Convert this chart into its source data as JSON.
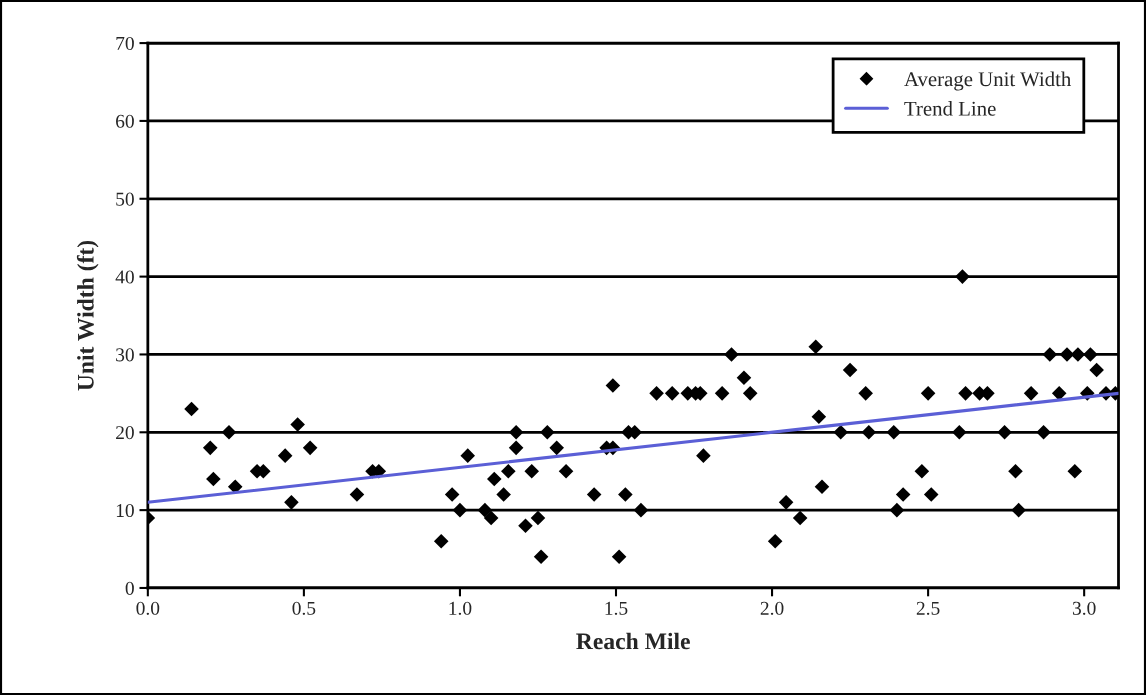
{
  "chart_data": {
    "type": "scatter",
    "xlabel": "Reach Mile",
    "ylabel": "Unit Width (ft)",
    "xlim": [
      0,
      3.11
    ],
    "xticks": [
      {
        "value": 0,
        "label": "0.0"
      },
      0.5,
      {
        "value": 1,
        "label": "1.0"
      },
      1.5,
      {
        "value": 2,
        "label": "2.0"
      },
      2.5,
      {
        "value": 3,
        "label": "3.0"
      }
    ],
    "ylim": [
      0,
      70
    ],
    "yticks": [
      0,
      10,
      20,
      30,
      40,
      50,
      60,
      70
    ],
    "grid": "y",
    "legend": "top right",
    "series": [
      {
        "name": "Average Unit Width",
        "marker": "diamond",
        "color": "#000000",
        "x": [
          0.0,
          0.14,
          0.2,
          0.21,
          0.26,
          0.28,
          0.35,
          0.37,
          0.44,
          0.46,
          0.48,
          0.52,
          0.67,
          0.72,
          0.74,
          0.94,
          0.975,
          1.0,
          1.025,
          1.08,
          1.1,
          1.11,
          1.14,
          1.155,
          1.18,
          1.18,
          1.21,
          1.23,
          1.25,
          1.26,
          1.28,
          1.31,
          1.34,
          1.43,
          1.47,
          1.49,
          1.49,
          1.51,
          1.53,
          1.54,
          1.56,
          1.58,
          1.63,
          1.68,
          1.73,
          1.755,
          1.77,
          1.78,
          1.84,
          1.87,
          1.91,
          1.93,
          2.01,
          2.045,
          2.09,
          2.14,
          2.15,
          2.16,
          2.22,
          2.25,
          2.3,
          2.31,
          2.39,
          2.4,
          2.42,
          2.48,
          2.5,
          2.51,
          2.6,
          2.61,
          2.62,
          2.665,
          2.69,
          2.745,
          2.78,
          2.79,
          2.83,
          2.87,
          2.89,
          2.92,
          2.945,
          2.97,
          2.98,
          3.01,
          3.02,
          3.04,
          3.07,
          3.1
        ],
        "values": [
          9,
          23,
          18,
          14,
          20,
          13,
          15,
          15,
          17,
          11,
          21,
          18,
          12,
          15,
          15,
          6,
          12,
          10,
          17,
          10,
          9,
          14,
          12,
          15,
          18,
          20,
          8,
          15,
          9,
          4,
          20,
          18,
          15,
          12,
          18,
          18,
          26,
          4,
          12,
          20,
          20,
          10,
          25,
          25,
          25,
          25,
          25,
          17,
          25,
          30,
          27,
          25,
          6,
          11,
          9,
          31,
          22,
          13,
          20,
          28,
          25,
          20,
          20,
          10,
          12,
          15,
          25,
          12,
          20,
          40,
          25,
          25,
          25,
          20,
          15,
          10,
          25,
          20,
          30,
          25,
          30,
          15,
          30,
          25,
          30,
          28,
          25,
          25
        ]
      },
      {
        "name": "Trend Line",
        "type": "line",
        "line_style": "solid",
        "color": "#5b5fd6",
        "x": [
          0,
          3.11
        ],
        "values": [
          11,
          25
        ]
      }
    ]
  }
}
